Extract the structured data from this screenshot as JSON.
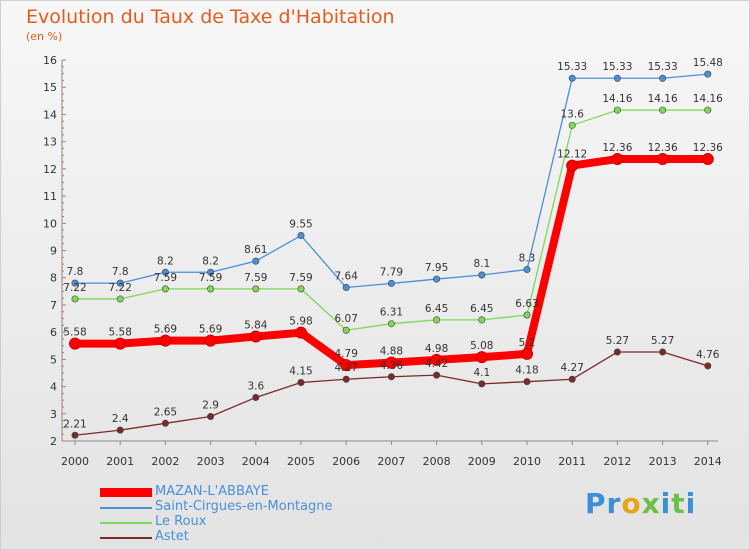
{
  "chart_data": {
    "type": "line",
    "title": "Evolution du Taux de Taxe d'Habitation",
    "subtitle": "(en %)",
    "xlabel": "",
    "ylabel": "",
    "x": [
      "2000",
      "2001",
      "2002",
      "2003",
      "2004",
      "2005",
      "2006",
      "2007",
      "2008",
      "2009",
      "2010",
      "2011",
      "2012",
      "2013",
      "2014"
    ],
    "ylim": [
      2,
      16
    ],
    "yticks": [
      "2",
      "3",
      "4",
      "5",
      "6",
      "7",
      "8",
      "9",
      "10",
      "11",
      "12",
      "13",
      "14",
      "15",
      "16"
    ],
    "grid": false,
    "legend_position": "bottom-left",
    "series": [
      {
        "name": "MAZAN-L'ABBAYE",
        "color": "#ff0000",
        "values": [
          5.58,
          5.58,
          5.69,
          5.69,
          5.84,
          5.98,
          4.79,
          4.88,
          4.98,
          5.08,
          5.2,
          12.12,
          12.36,
          12.36,
          12.36
        ],
        "labels": [
          "5.58",
          "5.58",
          "5.69",
          "5.69",
          "5.84",
          "5.98",
          "4.79",
          "4.88",
          "4.98",
          "5.08",
          "5.2",
          "12.12",
          "12.36",
          "12.36",
          "12.36"
        ]
      },
      {
        "name": "Saint-Cirgues-en-Montagne",
        "color": "#4a90d9",
        "values": [
          7.8,
          7.8,
          8.2,
          8.2,
          8.61,
          9.55,
          7.64,
          7.79,
          7.95,
          8.1,
          8.3,
          15.33,
          15.33,
          15.33,
          15.48
        ],
        "labels": [
          "7.8",
          "7.8",
          "8.2",
          "8.2",
          "8.61",
          "9.55",
          "7.64",
          "7.79",
          "7.95",
          "8.1",
          "8.3",
          "15.33",
          "15.33",
          "15.33",
          "15.48"
        ]
      },
      {
        "name": "Le Roux",
        "color": "#7ed957",
        "values": [
          7.22,
          7.22,
          7.59,
          7.59,
          7.59,
          7.59,
          6.07,
          6.31,
          6.45,
          6.45,
          6.63,
          13.6,
          14.16,
          14.16,
          14.16
        ],
        "labels": [
          "7.22",
          "7.22",
          "7.59",
          "7.59",
          "7.59",
          "7.59",
          "6.07",
          "6.31",
          "6.45",
          "6.45",
          "6.63",
          "13.6",
          "14.16",
          "14.16",
          "14.16"
        ]
      },
      {
        "name": "Astet",
        "color": "#7a2a2a",
        "values": [
          2.21,
          2.4,
          2.65,
          2.9,
          3.6,
          4.15,
          4.27,
          4.36,
          4.42,
          4.1,
          4.18,
          4.27,
          5.27,
          5.27,
          4.76
        ],
        "labels": [
          "2.21",
          "2.4",
          "2.65",
          "2.9",
          "3.6",
          "4.15",
          "4.27",
          "4.36",
          "4.42",
          "4.1",
          "4.18",
          "4.27",
          "5.27",
          "5.27",
          "4.76"
        ]
      }
    ]
  },
  "logo": {
    "text": "Proxiti",
    "colors": [
      "#3b8ed8",
      "#e8a317",
      "#6cc04a"
    ]
  }
}
